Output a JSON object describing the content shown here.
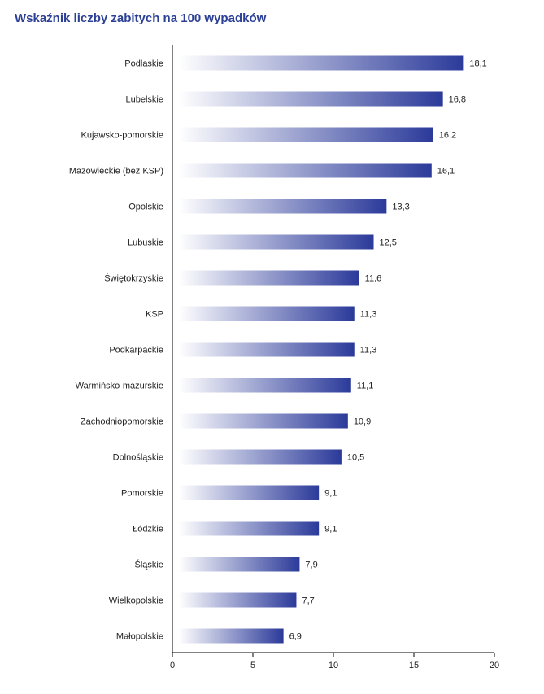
{
  "colors": {
    "title": "#2b3f95",
    "bar_start": "#ffffff",
    "bar_end": "#2b3a9a",
    "axis": "#000000"
  },
  "chart_data": {
    "type": "bar",
    "orientation": "horizontal",
    "title": "Wskaźnik liczby zabitych na 100 wypadków",
    "xlabel": "",
    "ylabel": "",
    "xlim": [
      0,
      20
    ],
    "ticks": [
      "0",
      "5",
      "10",
      "15",
      "20"
    ],
    "tick_values": [
      0,
      5,
      10,
      15,
      20
    ],
    "grid": false,
    "categories": [
      "Podlaskie",
      "Lubelskie",
      "Kujawsko-pomorskie",
      "Mazowieckie (bez KSP)",
      "Opolskie",
      "Lubuskie",
      "Świętokrzyskie",
      "KSP",
      "Podkarpackie",
      "Warmińsko-mazurskie",
      "Zachodniopomorskie",
      "Dolnośląskie",
      "Pomorskie",
      "Łódzkie",
      "Śląskie",
      "Wielkopolskie",
      "Małopolskie"
    ],
    "values": [
      18.1,
      16.8,
      16.2,
      16.1,
      13.3,
      12.5,
      11.6,
      11.3,
      11.3,
      11.1,
      10.9,
      10.5,
      9.1,
      9.1,
      7.9,
      7.7,
      6.9
    ],
    "value_labels": [
      "18,1",
      "16,8",
      "16,2",
      "16,1",
      "13,3",
      "12,5",
      "11,6",
      "11,3",
      "11,3",
      "11,1",
      "10,9",
      "10,5",
      "9,1",
      "9,1",
      "7,9",
      "7,7",
      "6,9"
    ]
  }
}
